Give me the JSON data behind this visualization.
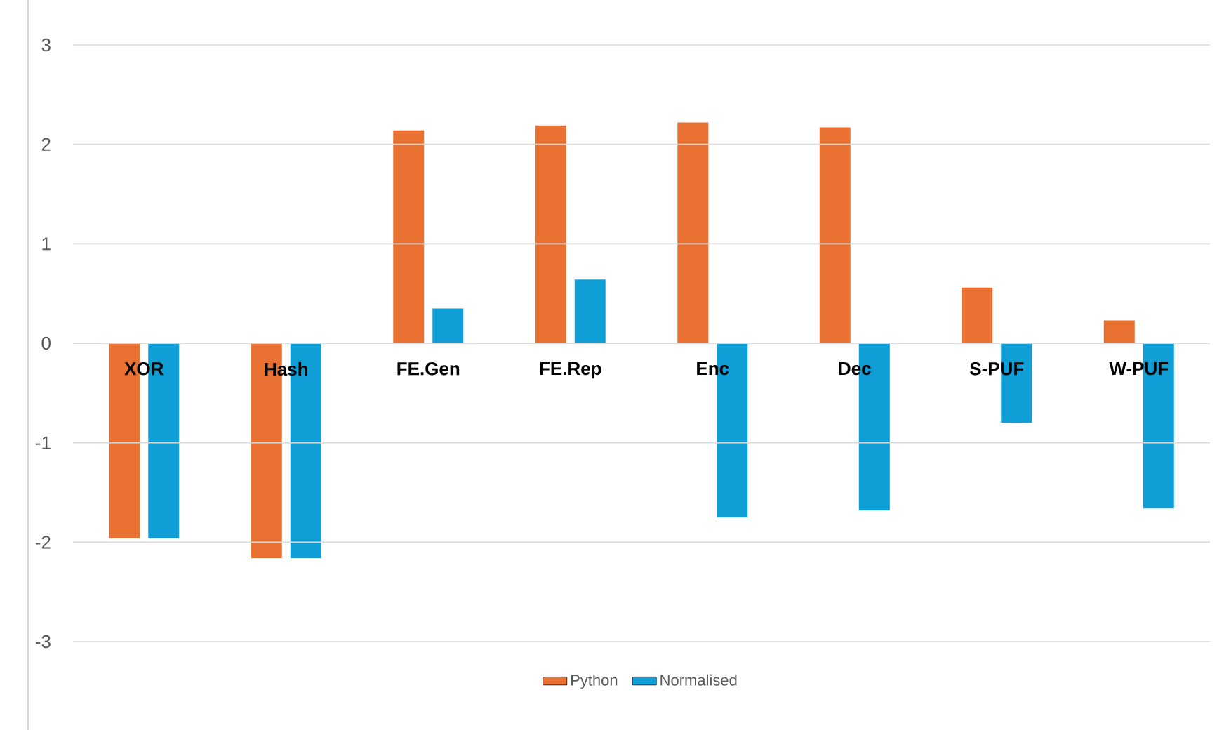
{
  "chart_data": {
    "type": "bar",
    "categories": [
      "XOR",
      "Hash",
      "FE.Gen",
      "FE.Rep",
      "Enc",
      "Dec",
      "S-PUF",
      "W-PUF"
    ],
    "series": [
      {
        "name": "Python",
        "color": "#e97132",
        "values": [
          -1.96,
          -2.16,
          2.14,
          2.19,
          2.22,
          2.17,
          0.56,
          0.23
        ]
      },
      {
        "name": "Normalised",
        "color": "#0f9ed5",
        "values": [
          -1.96,
          -2.16,
          0.35,
          0.64,
          -1.75,
          -1.68,
          -0.8,
          -1.66
        ]
      }
    ],
    "ylim": [
      -3,
      3
    ],
    "yticks": [
      -3,
      -2,
      -1,
      0,
      1,
      2,
      3
    ],
    "grid": "y",
    "legend": "bottom"
  }
}
